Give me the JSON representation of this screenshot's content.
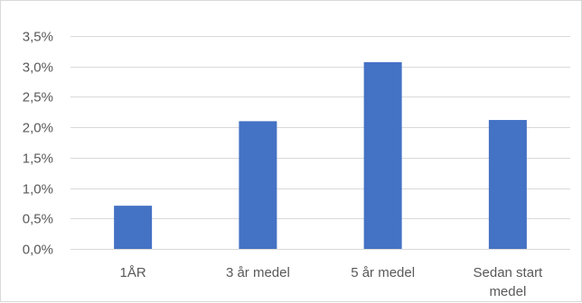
{
  "chart_data": {
    "type": "bar",
    "categories": [
      "1ÅR",
      "3 år medel",
      "5 år medel",
      "Sedan start medel"
    ],
    "category_lines": [
      [
        "1ÅR"
      ],
      [
        "3 år medel"
      ],
      [
        "5 år medel"
      ],
      [
        "Sedan start",
        "medel"
      ]
    ],
    "values": [
      0.71,
      2.1,
      3.07,
      2.12
    ],
    "y_ticks": [
      0.0,
      0.5,
      1.0,
      1.5,
      2.0,
      2.5,
      3.0,
      3.5
    ],
    "y_tick_labels": [
      "0,0%",
      "0,5%",
      "1,0%",
      "1,5%",
      "2,0%",
      "2,5%",
      "3,0%",
      "3,5%"
    ],
    "ylim": [
      0,
      3.5
    ],
    "title": "",
    "xlabel": "",
    "ylabel": "",
    "grid": true,
    "legend": "none",
    "bar_color": "#4472c4",
    "grid_color": "#d9d9d9"
  }
}
